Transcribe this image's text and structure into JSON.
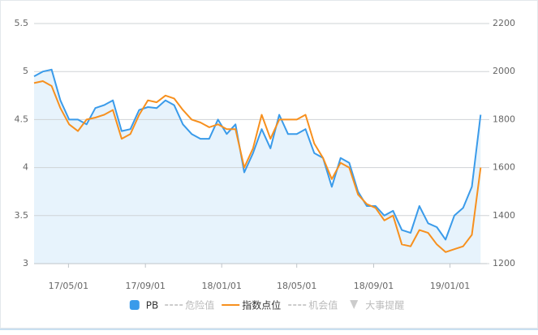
{
  "chart_data": {
    "type": "line",
    "x": [
      "2017-03-07",
      "2017-03-21",
      "2017-04-04",
      "2017-04-18",
      "2017-05-02",
      "2017-05-16",
      "2017-05-30",
      "2017-06-13",
      "2017-06-27",
      "2017-07-11",
      "2017-07-25",
      "2017-08-08",
      "2017-08-22",
      "2017-09-05",
      "2017-09-19",
      "2017-10-03",
      "2017-10-17",
      "2017-10-31",
      "2017-11-14",
      "2017-11-28",
      "2017-12-12",
      "2017-12-26",
      "2018-01-09",
      "2018-01-23",
      "2018-02-06",
      "2018-02-20",
      "2018-03-06",
      "2018-03-20",
      "2018-04-03",
      "2018-04-17",
      "2018-05-01",
      "2018-05-15",
      "2018-05-29",
      "2018-06-12",
      "2018-06-26",
      "2018-07-10",
      "2018-07-24",
      "2018-08-07",
      "2018-08-21",
      "2018-09-04",
      "2018-09-18",
      "2018-10-02",
      "2018-10-16",
      "2018-10-30",
      "2018-11-13",
      "2018-11-27",
      "2018-12-11",
      "2018-12-25",
      "2019-01-08",
      "2019-01-22",
      "2019-02-05",
      "2019-02-19"
    ],
    "xlim": [
      "2017-03-07",
      "2019-03-01"
    ],
    "xticks": [
      {
        "value": "2017-05-01",
        "label": "17/05/01"
      },
      {
        "value": "2017-09-01",
        "label": "17/09/01"
      },
      {
        "value": "2018-01-01",
        "label": "18/01/01"
      },
      {
        "value": "2018-05-01",
        "label": "18/05/01"
      },
      {
        "value": "2018-09-01",
        "label": "18/09/01"
      },
      {
        "value": "2019-01-01",
        "label": "19/01/01"
      }
    ],
    "ylim": [
      3,
      5.5
    ],
    "yticks": [
      3,
      3.5,
      4,
      4.5,
      5,
      5.5
    ],
    "y2lim": [
      1200,
      2200
    ],
    "y2ticks": [
      1200,
      1400,
      1600,
      1800,
      2000,
      2200
    ],
    "grid": true,
    "series": [
      {
        "name": "PB",
        "color": "#3a9bea",
        "area": true,
        "visible": true,
        "values": [
          4.95,
          5.0,
          5.02,
          4.7,
          4.5,
          4.5,
          4.45,
          4.62,
          4.65,
          4.7,
          4.38,
          4.4,
          4.6,
          4.63,
          4.62,
          4.7,
          4.65,
          4.45,
          4.35,
          4.3,
          4.3,
          4.5,
          4.35,
          4.45,
          3.95,
          4.15,
          4.4,
          4.2,
          4.55,
          4.35,
          4.35,
          4.4,
          4.15,
          4.1,
          3.8,
          4.1,
          4.05,
          3.75,
          3.6,
          3.6,
          3.5,
          3.55,
          3.35,
          3.32,
          3.6,
          3.42,
          3.38,
          3.25,
          3.5,
          3.58,
          3.8,
          4.55
        ]
      },
      {
        "name": "危险值",
        "color": "#cccccc",
        "visible": false
      },
      {
        "name": "指数点位",
        "color": "#f7901e",
        "axis": "y2",
        "visible": true,
        "values": [
          1952,
          1960,
          1940,
          1848,
          1780,
          1752,
          1800,
          1808,
          1820,
          1840,
          1720,
          1740,
          1820,
          1880,
          1872,
          1900,
          1888,
          1840,
          1800,
          1788,
          1768,
          1780,
          1760,
          1760,
          1600,
          1680,
          1820,
          1720,
          1800,
          1800,
          1800,
          1820,
          1700,
          1640,
          1552,
          1620,
          1600,
          1488,
          1448,
          1432,
          1380,
          1400,
          1280,
          1272,
          1340,
          1328,
          1280,
          1248,
          1260,
          1272,
          1320,
          1600
        ]
      },
      {
        "name": "机会值",
        "color": "#cccccc",
        "visible": false
      },
      {
        "name": "大事提醒",
        "color": "#cccccc",
        "visible": false,
        "symbol": "triangle"
      }
    ]
  }
}
